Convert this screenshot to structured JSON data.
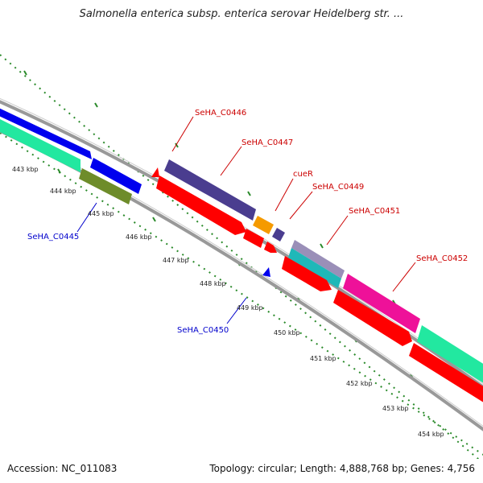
{
  "title": "Salmonella enterica subsp. enterica serovar Heidelberg str. ...",
  "accession": "Accession: NC_011083",
  "summary": "Topology: circular; Length: 4,888,768 bp; Genes: 4,756",
  "tick_labels": [
    "443 kbp",
    "444 kbp",
    "445 kbp",
    "446 kbp",
    "447 kbp",
    "448 kbp",
    "449 kbp",
    "450 kbp",
    "451 kbp",
    "452 kbp",
    "453 kbp",
    "454 kbp"
  ],
  "gene_labels": {
    "g0445": "SeHA_C0445",
    "g0446": "SeHA_C0446",
    "g0447": "SeHA_C0447",
    "cueR": "cueR",
    "g0449": "SeHA_C0449",
    "g0450": "SeHA_C0450",
    "g0451": "SeHA_C0451",
    "g0452": "SeHA_C0452"
  },
  "colors": {
    "forward_label": "#cc0000",
    "reverse_label": "#0000cc",
    "backbone": "#888888",
    "ticks": "#2a8a2a",
    "cds_red": "#ff0000",
    "blue": "#0000ee",
    "navy": "#4a3d8f",
    "orange": "#f59a00",
    "teal": "#1fb8b8",
    "magenta": "#ee1199",
    "mint": "#22e8a0",
    "olive": "#6e8c2a",
    "grey_purple": "#9a8fb8"
  }
}
